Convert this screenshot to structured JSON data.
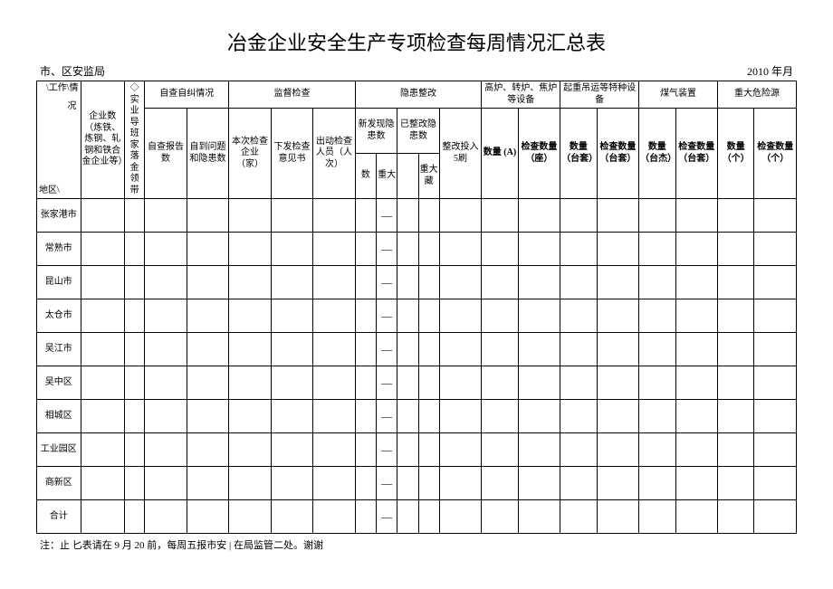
{
  "title": "冶金企业安全生产专项检查每周情况汇总表",
  "meta": {
    "left": "市、区安监局",
    "right": "2010 年月"
  },
  "headers": {
    "diag_top": "\\工作\\情",
    "diag_mid": "况",
    "diag_bot": "地区\\",
    "col_qiye": "企业数（炼铁、炼钢、轧钢和铁合金企业等）",
    "col_shiye": "◇实业导班家落金领带",
    "grp_zicha": "自查自纠情况",
    "col_zicha_baogao": "自查报告数",
    "col_zicha_wenti": "自到问题和隐患数",
    "grp_jiandu": "监督检查",
    "col_benci": "本次检查企业（家）",
    "col_xiafa": "下发检查意见书",
    "col_chudong": "出动检查人员（人次）",
    "grp_yinhuan": "隐患整改",
    "sub_xinfaxian": "新发现隐患数",
    "sub_yizhenggai": "已整改隐患数",
    "col_shu": "数",
    "col_zhongda": "重大",
    "col_zhongda2": "重大藏",
    "col_zhenggai_touru": "整改投入5刷",
    "grp_gaolu": "高炉、转炉、焦炉等设备",
    "grp_qizhong": "起重吊运等特种设备",
    "grp_meiqi": "煤气装置",
    "grp_zhongda": "重大危险源",
    "col_shuliang_a": "数量 (A)",
    "col_jiancha_zuo": "检查数量（座）",
    "col_shuliang_tai": "数量（台套）",
    "col_jiancha_tai": "检查数量（台套）",
    "col_shuliang_taijie": "数量（台杰）",
    "col_jiancha_tai2": "检查数量（台套）",
    "col_shuliang_ge": "数量（个）",
    "col_jiancha_ge": "检查数量（个）"
  },
  "regions": [
    "张家港市",
    "常熟市",
    "昆山市",
    "太仓市",
    "吴江市",
    "吴中区",
    "相城区",
    "工业园区",
    "商新区",
    "合计"
  ],
  "dash": "—",
  "footnote": "注：止 匕表请在 9 月 20 前，每周五报市安 | 在局监管二处。谢谢"
}
